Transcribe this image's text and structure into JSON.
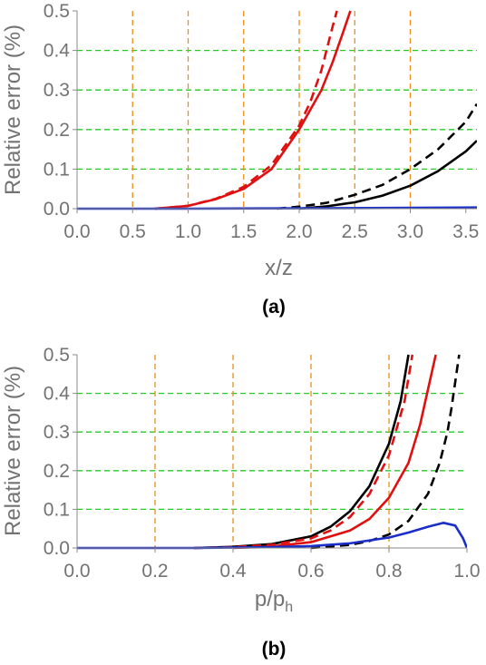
{
  "chart_data": [
    {
      "type": "line",
      "panel_label": "(a)",
      "xlabel": "x/z",
      "ylabel": "Relative error  (%)",
      "xlim": [
        0.0,
        3.6
      ],
      "ylim": [
        0.0,
        0.5
      ],
      "x_ticks": [
        "0.0",
        "0.5",
        "1.0",
        "1.5",
        "2.0",
        "2.5",
        "3.0",
        "3.5"
      ],
      "y_ticks": [
        "0.0",
        "0.1",
        "0.2",
        "0.3",
        "0.4",
        "0.5"
      ],
      "vertical_reference_lines_x": [
        0.5,
        1.0,
        1.5,
        2.0,
        2.5,
        3.0
      ],
      "horizontal_reference_lines_y": [
        0.1,
        0.2,
        0.3,
        0.4
      ],
      "series": [
        {
          "color": "#e01010",
          "style": "dashed",
          "x": [
            0.7,
            1.0,
            1.25,
            1.5,
            1.75,
            2.0,
            2.1,
            2.2,
            2.3,
            2.34
          ],
          "y": [
            0.0,
            0.007,
            0.025,
            0.055,
            0.11,
            0.21,
            0.27,
            0.35,
            0.46,
            0.5
          ]
        },
        {
          "color": "#e01010",
          "style": "solid",
          "x": [
            0.7,
            1.0,
            1.25,
            1.5,
            1.75,
            2.0,
            2.2,
            2.3,
            2.4,
            2.46
          ],
          "y": [
            0.0,
            0.007,
            0.024,
            0.05,
            0.1,
            0.2,
            0.3,
            0.37,
            0.45,
            0.5
          ]
        },
        {
          "color": "#000000",
          "style": "dashed",
          "x": [
            1.8,
            2.0,
            2.25,
            2.5,
            2.75,
            3.0,
            3.25,
            3.5,
            3.6
          ],
          "y": [
            0.0,
            0.005,
            0.015,
            0.035,
            0.06,
            0.1,
            0.15,
            0.22,
            0.265
          ]
        },
        {
          "color": "#000000",
          "style": "solid",
          "x": [
            2.0,
            2.25,
            2.5,
            2.75,
            3.0,
            3.25,
            3.5,
            3.6
          ],
          "y": [
            0.0,
            0.006,
            0.016,
            0.033,
            0.058,
            0.095,
            0.145,
            0.172
          ]
        },
        {
          "color": "#1a2ec8",
          "style": "solid",
          "x": [
            0.0,
            1.0,
            2.0,
            3.0,
            3.6
          ],
          "y": [
            0.0,
            0.0,
            0.001,
            0.002,
            0.003
          ]
        }
      ]
    },
    {
      "type": "line",
      "panel_label": "(b)",
      "xlabel": "p/p",
      "xlabel_subscript": "h",
      "ylabel": "Relative error  (%)",
      "xlim": [
        0.0,
        1.0
      ],
      "ylim": [
        0.0,
        0.5
      ],
      "x_ticks": [
        "0.0",
        "0.2",
        "0.4",
        "0.6",
        "0.8",
        "1.0"
      ],
      "y_ticks": [
        "0.0",
        "0.1",
        "0.2",
        "0.3",
        "0.4",
        "0.5"
      ],
      "vertical_reference_lines_x": [
        0.2,
        0.4,
        0.6,
        0.8
      ],
      "horizontal_reference_lines_y": [
        0.1,
        0.2,
        0.3,
        0.4
      ],
      "series": [
        {
          "color": "#000000",
          "style": "solid",
          "x": [
            0.3,
            0.4,
            0.5,
            0.6,
            0.65,
            0.7,
            0.75,
            0.8,
            0.83,
            0.85
          ],
          "y": [
            0.0,
            0.003,
            0.01,
            0.03,
            0.055,
            0.095,
            0.16,
            0.27,
            0.38,
            0.5
          ]
        },
        {
          "color": "#e01010",
          "style": "dashed",
          "x": [
            0.3,
            0.4,
            0.5,
            0.6,
            0.65,
            0.7,
            0.75,
            0.8,
            0.84,
            0.86
          ],
          "y": [
            0.0,
            0.002,
            0.008,
            0.025,
            0.045,
            0.08,
            0.14,
            0.24,
            0.38,
            0.5
          ]
        },
        {
          "color": "#e01010",
          "style": "solid",
          "x": [
            0.4,
            0.5,
            0.6,
            0.7,
            0.75,
            0.8,
            0.85,
            0.88,
            0.9,
            0.92
          ],
          "y": [
            0.0,
            0.004,
            0.015,
            0.045,
            0.075,
            0.13,
            0.22,
            0.32,
            0.41,
            0.5
          ]
        },
        {
          "color": "#000000",
          "style": "dashed",
          "x": [
            0.6,
            0.7,
            0.75,
            0.8,
            0.85,
            0.9,
            0.93,
            0.95,
            0.96,
            0.98
          ],
          "y": [
            0.0,
            0.008,
            0.018,
            0.035,
            0.07,
            0.14,
            0.22,
            0.3,
            0.36,
            0.5
          ]
        },
        {
          "color": "#1a2ec8",
          "style": "solid",
          "x": [
            0.0,
            0.3,
            0.5,
            0.6,
            0.7,
            0.8,
            0.85,
            0.9,
            0.94,
            0.97,
            0.99,
            1.0
          ],
          "y": [
            0.0,
            0.0,
            0.002,
            0.005,
            0.012,
            0.027,
            0.04,
            0.055,
            0.065,
            0.058,
            0.025,
            0.0
          ]
        }
      ]
    }
  ]
}
